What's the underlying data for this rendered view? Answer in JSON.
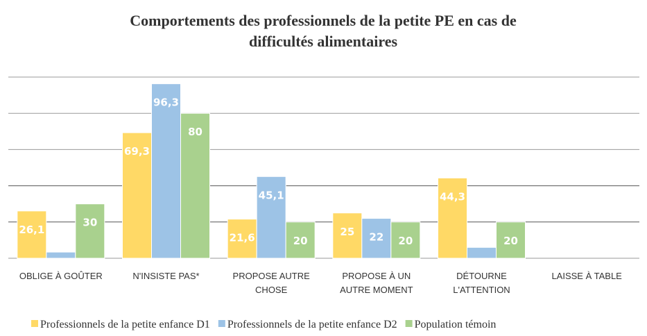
{
  "chart_data": {
    "type": "bar",
    "title": [
      "Comportements des professionnels de la petite PE en cas de",
      "difficultés alimentaires"
    ],
    "categories": [
      "OBLIGE À GOÛTER",
      "N'INSISTE PAS*",
      "PROPOSE AUTRE\nCHOSE",
      "PROPOSE À UN\nAUTRE MOMENT",
      "DÉTOURNE\nL'ATTENTION",
      "LAISSE À TABLE"
    ],
    "series": [
      {
        "name": "Professionnels de la petite enfance D1",
        "color": "#ffd966",
        "values": [
          26.1,
          69.3,
          21.6,
          25,
          44.3,
          null
        ],
        "value_labels": [
          "26,1",
          "69,3",
          "21,6",
          "25",
          "44,3",
          null
        ]
      },
      {
        "name": "Professionnels de la petite enfance D2",
        "color": "#9dc3e6",
        "values": [
          3.4,
          96.3,
          45.1,
          22,
          6,
          null
        ],
        "value_labels": [
          null,
          "96,3",
          "45,1",
          "22",
          null,
          null
        ]
      },
      {
        "name": "Population témoin",
        "color": "#a9d18e",
        "values": [
          30,
          80,
          20,
          20,
          20,
          null
        ],
        "value_labels": [
          "30",
          "80",
          "20",
          "20",
          "20",
          null
        ]
      }
    ],
    "ylim": [
      0,
      100
    ],
    "yticks": [
      0,
      20,
      40,
      60,
      80,
      100
    ],
    "grid": true
  }
}
